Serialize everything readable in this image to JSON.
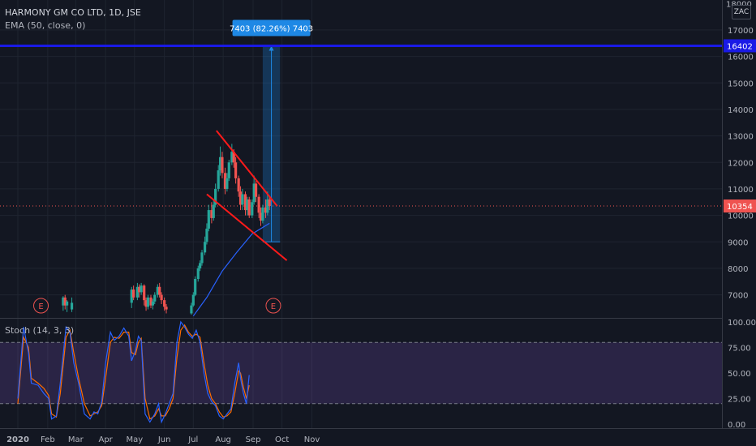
{
  "header": {
    "title": "HARMONY GM CO LTD, 1D, JSE",
    "indicator": "EMA (50, close, 0)",
    "osc_label": "Stoch (14, 3, 3)",
    "currency": "ZAC"
  },
  "colors": {
    "bg": "#131722",
    "up": "#26a69a",
    "down": "#ef5350",
    "ema": "#2962ff",
    "resistance": "#1a1ae6",
    "trend": "#ff1a1a",
    "stoch_k": "#2962ff",
    "stoch_d": "#ff6d00",
    "stoch_band": "#7e57c2",
    "measure": "#1e88e5"
  },
  "price_axis": {
    "ticks": [
      "17000",
      "16000",
      "15000",
      "14000",
      "13000",
      "12000",
      "11000",
      "10000",
      "9000",
      "8000",
      "7000"
    ],
    "top_partial": "18000",
    "current_price": "10354",
    "resistance_label": "16402"
  },
  "stoch_axis": {
    "ticks": [
      "100.00",
      "75.00",
      "50.00",
      "25.00",
      "0.00"
    ]
  },
  "time_axis": {
    "labels": [
      "2020",
      "Feb",
      "Mar",
      "Apr",
      "May",
      "Jun",
      "Jul",
      "Aug",
      "Sep",
      "Oct",
      "Nov"
    ]
  },
  "earnings_markers": [
    "E",
    "E"
  ],
  "measure_label": "7403 (82.26%) 7403",
  "chart_data": {
    "type": "candlestick",
    "title": "HARMONY GM CO LTD, 1D, JSE",
    "y_range": [
      6100,
      18100
    ],
    "resistance_level": 16402,
    "current_price": 10354,
    "measure": {
      "from": 9000,
      "to": 16402,
      "change": "7403 (82.26%) 7403"
    },
    "channel_upper": [
      {
        "date": "2020-07-25",
        "value": 13200
      },
      {
        "date": "2020-09-26",
        "value": 10350
      }
    ],
    "channel_lower": [
      {
        "date": "2020-07-15",
        "value": 10800
      },
      {
        "date": "2020-10-06",
        "value": 8300
      }
    ],
    "candles": [
      [
        "2020-02-17",
        6600,
        6900,
        6950,
        6400
      ],
      [
        "2020-02-19",
        6900,
        6600,
        7000,
        6450
      ],
      [
        "2020-02-21",
        6600,
        6750,
        6800,
        6350
      ],
      [
        "2020-02-26",
        6450,
        6700,
        6900,
        6350
      ],
      [
        "2020-04-28",
        6700,
        7200,
        7300,
        6500
      ],
      [
        "2020-04-30",
        7200,
        6900,
        7350,
        6800
      ],
      [
        "2020-05-04",
        6900,
        7300,
        7450,
        6800
      ],
      [
        "2020-05-06",
        7300,
        7100,
        7400,
        6900
      ],
      [
        "2020-05-08",
        7100,
        7350,
        7450,
        7000
      ],
      [
        "2020-05-11",
        7350,
        6800,
        7400,
        6600
      ],
      [
        "2020-05-13",
        6800,
        6550,
        6900,
        6400
      ],
      [
        "2020-05-15",
        6550,
        6900,
        7000,
        6450
      ],
      [
        "2020-05-18",
        6900,
        6600,
        7000,
        6500
      ],
      [
        "2020-05-20",
        6600,
        6750,
        6850,
        6450
      ],
      [
        "2020-05-22",
        6750,
        7000,
        7100,
        6650
      ],
      [
        "2020-05-25",
        7000,
        7300,
        7400,
        6900
      ],
      [
        "2020-05-27",
        7300,
        7000,
        7450,
        6900
      ],
      [
        "2020-05-29",
        7000,
        6800,
        7100,
        6650
      ],
      [
        "2020-06-01",
        6800,
        6550,
        6900,
        6400
      ],
      [
        "2020-06-03",
        6550,
        6450,
        6650,
        6300
      ],
      [
        "2020-06-29",
        6300,
        6600,
        6700,
        6250
      ],
      [
        "2020-07-01",
        6600,
        7000,
        7100,
        6550
      ],
      [
        "2020-07-03",
        7000,
        7600,
        7700,
        6950
      ],
      [
        "2020-07-06",
        7600,
        8000,
        8100,
        7500
      ],
      [
        "2020-07-08",
        8000,
        8200,
        8300,
        7900
      ],
      [
        "2020-07-10",
        8200,
        8600,
        8700,
        8100
      ],
      [
        "2020-07-13",
        8600,
        9000,
        9200,
        8500
      ],
      [
        "2020-07-15",
        9000,
        9500,
        9700,
        8900
      ],
      [
        "2020-07-17",
        9500,
        10200,
        10400,
        9400
      ],
      [
        "2020-07-20",
        10200,
        9900,
        10500,
        9700
      ],
      [
        "2020-07-22",
        9900,
        10400,
        10600,
        9800
      ],
      [
        "2020-07-24",
        10400,
        11000,
        11200,
        10300
      ],
      [
        "2020-07-27",
        11000,
        11700,
        11900,
        10900
      ],
      [
        "2020-07-29",
        11700,
        12200,
        12600,
        11500
      ],
      [
        "2020-07-31",
        12200,
        11600,
        12400,
        11400
      ],
      [
        "2020-08-03",
        11600,
        11000,
        11800,
        10800
      ],
      [
        "2020-08-05",
        11000,
        11400,
        11600,
        10900
      ],
      [
        "2020-08-07",
        11400,
        12000,
        12100,
        11300
      ],
      [
        "2020-08-10",
        12000,
        12400,
        12700,
        11900
      ],
      [
        "2020-08-12",
        12400,
        12000,
        12500,
        11800
      ],
      [
        "2020-08-14",
        12000,
        11400,
        12200,
        11200
      ],
      [
        "2020-08-17",
        11400,
        10900,
        11500,
        10700
      ],
      [
        "2020-08-19",
        10900,
        10400,
        11100,
        10200
      ],
      [
        "2020-08-21",
        10400,
        10800,
        11000,
        10200
      ],
      [
        "2020-08-24",
        10800,
        10200,
        10900,
        10000
      ],
      [
        "2020-08-26",
        10200,
        10600,
        10700,
        10000
      ],
      [
        "2020-08-28",
        10600,
        10000,
        10700,
        9900
      ],
      [
        "2020-08-31",
        10000,
        10500,
        10600,
        9900
      ],
      [
        "2020-09-02",
        10500,
        11200,
        11500,
        10400
      ],
      [
        "2020-09-04",
        11200,
        10700,
        11300,
        10500
      ],
      [
        "2020-09-07",
        10700,
        10100,
        10800,
        9900
      ],
      [
        "2020-09-09",
        10100,
        9800,
        10300,
        9600
      ],
      [
        "2020-09-11",
        9800,
        10300,
        10400,
        9700
      ],
      [
        "2020-09-14",
        10300,
        10100,
        10600,
        9900
      ],
      [
        "2020-09-16",
        10100,
        10600,
        10900,
        10000
      ],
      [
        "2020-09-18",
        10600,
        10354,
        10700,
        10200
      ]
    ],
    "ema50": [
      [
        "2020-07-01",
        6200
      ],
      [
        "2020-07-15",
        6900
      ],
      [
        "2020-07-31",
        7900
      ],
      [
        "2020-08-15",
        8600
      ],
      [
        "2020-08-31",
        9300
      ],
      [
        "2020-09-18",
        9700
      ]
    ],
    "stochastic": {
      "name": "Stoch (14, 3, 3)",
      "y_range": [
        0,
        100
      ],
      "bands": [
        20,
        80
      ],
      "k": [
        [
          "2020-01-01",
          25
        ],
        [
          "2020-01-07",
          95
        ],
        [
          "2020-01-12",
          70
        ],
        [
          "2020-01-15",
          40
        ],
        [
          "2020-01-22",
          38
        ],
        [
          "2020-01-28",
          30
        ],
        [
          "2020-02-02",
          25
        ],
        [
          "2020-02-05",
          5
        ],
        [
          "2020-02-10",
          8
        ],
        [
          "2020-02-14",
          40
        ],
        [
          "2020-02-20",
          95
        ],
        [
          "2020-02-24",
          90
        ],
        [
          "2020-02-28",
          60
        ],
        [
          "2020-03-04",
          40
        ],
        [
          "2020-03-10",
          10
        ],
        [
          "2020-03-16",
          5
        ],
        [
          "2020-03-20",
          12
        ],
        [
          "2020-03-24",
          10
        ],
        [
          "2020-03-28",
          22
        ],
        [
          "2020-04-01",
          60
        ],
        [
          "2020-04-06",
          90
        ],
        [
          "2020-04-10",
          82
        ],
        [
          "2020-04-15",
          86
        ],
        [
          "2020-04-20",
          94
        ],
        [
          "2020-04-25",
          86
        ],
        [
          "2020-04-28",
          62
        ],
        [
          "2020-05-02",
          72
        ],
        [
          "2020-05-05",
          86
        ],
        [
          "2020-05-08",
          82
        ],
        [
          "2020-05-12",
          10
        ],
        [
          "2020-05-17",
          2
        ],
        [
          "2020-05-22",
          10
        ],
        [
          "2020-05-26",
          20
        ],
        [
          "2020-05-29",
          2
        ],
        [
          "2020-06-02",
          10
        ],
        [
          "2020-06-06",
          20
        ],
        [
          "2020-06-10",
          30
        ],
        [
          "2020-06-14",
          80
        ],
        [
          "2020-06-18",
          100
        ],
        [
          "2020-06-22",
          95
        ],
        [
          "2020-06-26",
          88
        ],
        [
          "2020-06-30",
          84
        ],
        [
          "2020-07-04",
          92
        ],
        [
          "2020-07-08",
          80
        ],
        [
          "2020-07-12",
          50
        ],
        [
          "2020-07-16",
          30
        ],
        [
          "2020-07-20",
          22
        ],
        [
          "2020-07-24",
          18
        ],
        [
          "2020-07-28",
          8
        ],
        [
          "2020-08-01",
          5
        ],
        [
          "2020-08-05",
          10
        ],
        [
          "2020-08-09",
          15
        ],
        [
          "2020-08-13",
          40
        ],
        [
          "2020-08-17",
          60
        ],
        [
          "2020-08-19",
          45
        ],
        [
          "2020-08-22",
          30
        ],
        [
          "2020-08-25",
          20
        ],
        [
          "2020-08-28",
          48
        ]
      ],
      "d": [
        [
          "2020-01-01",
          20
        ],
        [
          "2020-01-07",
          85
        ],
        [
          "2020-01-12",
          75
        ],
        [
          "2020-01-15",
          45
        ],
        [
          "2020-01-22",
          40
        ],
        [
          "2020-01-28",
          35
        ],
        [
          "2020-02-02",
          28
        ],
        [
          "2020-02-05",
          10
        ],
        [
          "2020-02-10",
          7
        ],
        [
          "2020-02-14",
          30
        ],
        [
          "2020-02-20",
          85
        ],
        [
          "2020-02-24",
          92
        ],
        [
          "2020-02-28",
          70
        ],
        [
          "2020-03-04",
          45
        ],
        [
          "2020-03-10",
          20
        ],
        [
          "2020-03-16",
          8
        ],
        [
          "2020-03-20",
          10
        ],
        [
          "2020-03-24",
          12
        ],
        [
          "2020-03-28",
          18
        ],
        [
          "2020-04-01",
          45
        ],
        [
          "2020-04-06",
          80
        ],
        [
          "2020-04-10",
          85
        ],
        [
          "2020-04-15",
          84
        ],
        [
          "2020-04-20",
          90
        ],
        [
          "2020-04-25",
          90
        ],
        [
          "2020-04-28",
          70
        ],
        [
          "2020-05-02",
          68
        ],
        [
          "2020-05-05",
          80
        ],
        [
          "2020-05-08",
          84
        ],
        [
          "2020-05-12",
          25
        ],
        [
          "2020-05-17",
          5
        ],
        [
          "2020-05-22",
          8
        ],
        [
          "2020-05-26",
          15
        ],
        [
          "2020-05-29",
          8
        ],
        [
          "2020-06-02",
          8
        ],
        [
          "2020-06-06",
          15
        ],
        [
          "2020-06-10",
          25
        ],
        [
          "2020-06-14",
          65
        ],
        [
          "2020-06-18",
          92
        ],
        [
          "2020-06-22",
          97
        ],
        [
          "2020-06-26",
          90
        ],
        [
          "2020-06-30",
          86
        ],
        [
          "2020-07-04",
          88
        ],
        [
          "2020-07-08",
          85
        ],
        [
          "2020-07-12",
          60
        ],
        [
          "2020-07-16",
          38
        ],
        [
          "2020-07-20",
          25
        ],
        [
          "2020-07-24",
          20
        ],
        [
          "2020-07-28",
          12
        ],
        [
          "2020-08-01",
          7
        ],
        [
          "2020-08-05",
          8
        ],
        [
          "2020-08-09",
          12
        ],
        [
          "2020-08-13",
          30
        ],
        [
          "2020-08-17",
          52
        ],
        [
          "2020-08-19",
          50
        ],
        [
          "2020-08-22",
          36
        ],
        [
          "2020-08-25",
          25
        ],
        [
          "2020-08-28",
          38
        ]
      ]
    }
  }
}
